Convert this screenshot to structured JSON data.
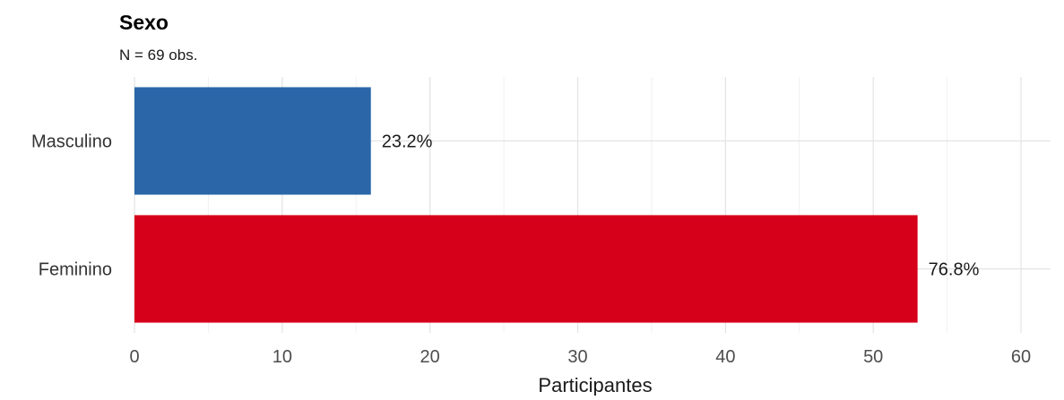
{
  "chart_data": {
    "type": "bar",
    "orientation": "horizontal",
    "title": "Sexo",
    "subtitle": "N = 69 obs.",
    "xlabel": "Participantes",
    "ylabel": "",
    "xlim": [
      0,
      62
    ],
    "xticks": [
      0,
      10,
      20,
      30,
      40,
      50,
      60
    ],
    "grid": true,
    "categories": [
      "Masculino",
      "Feminino"
    ],
    "values": [
      16,
      53
    ],
    "labels": [
      "23.2%",
      "76.8%"
    ],
    "colors": [
      "#2b67a8",
      "#d7001a"
    ]
  }
}
